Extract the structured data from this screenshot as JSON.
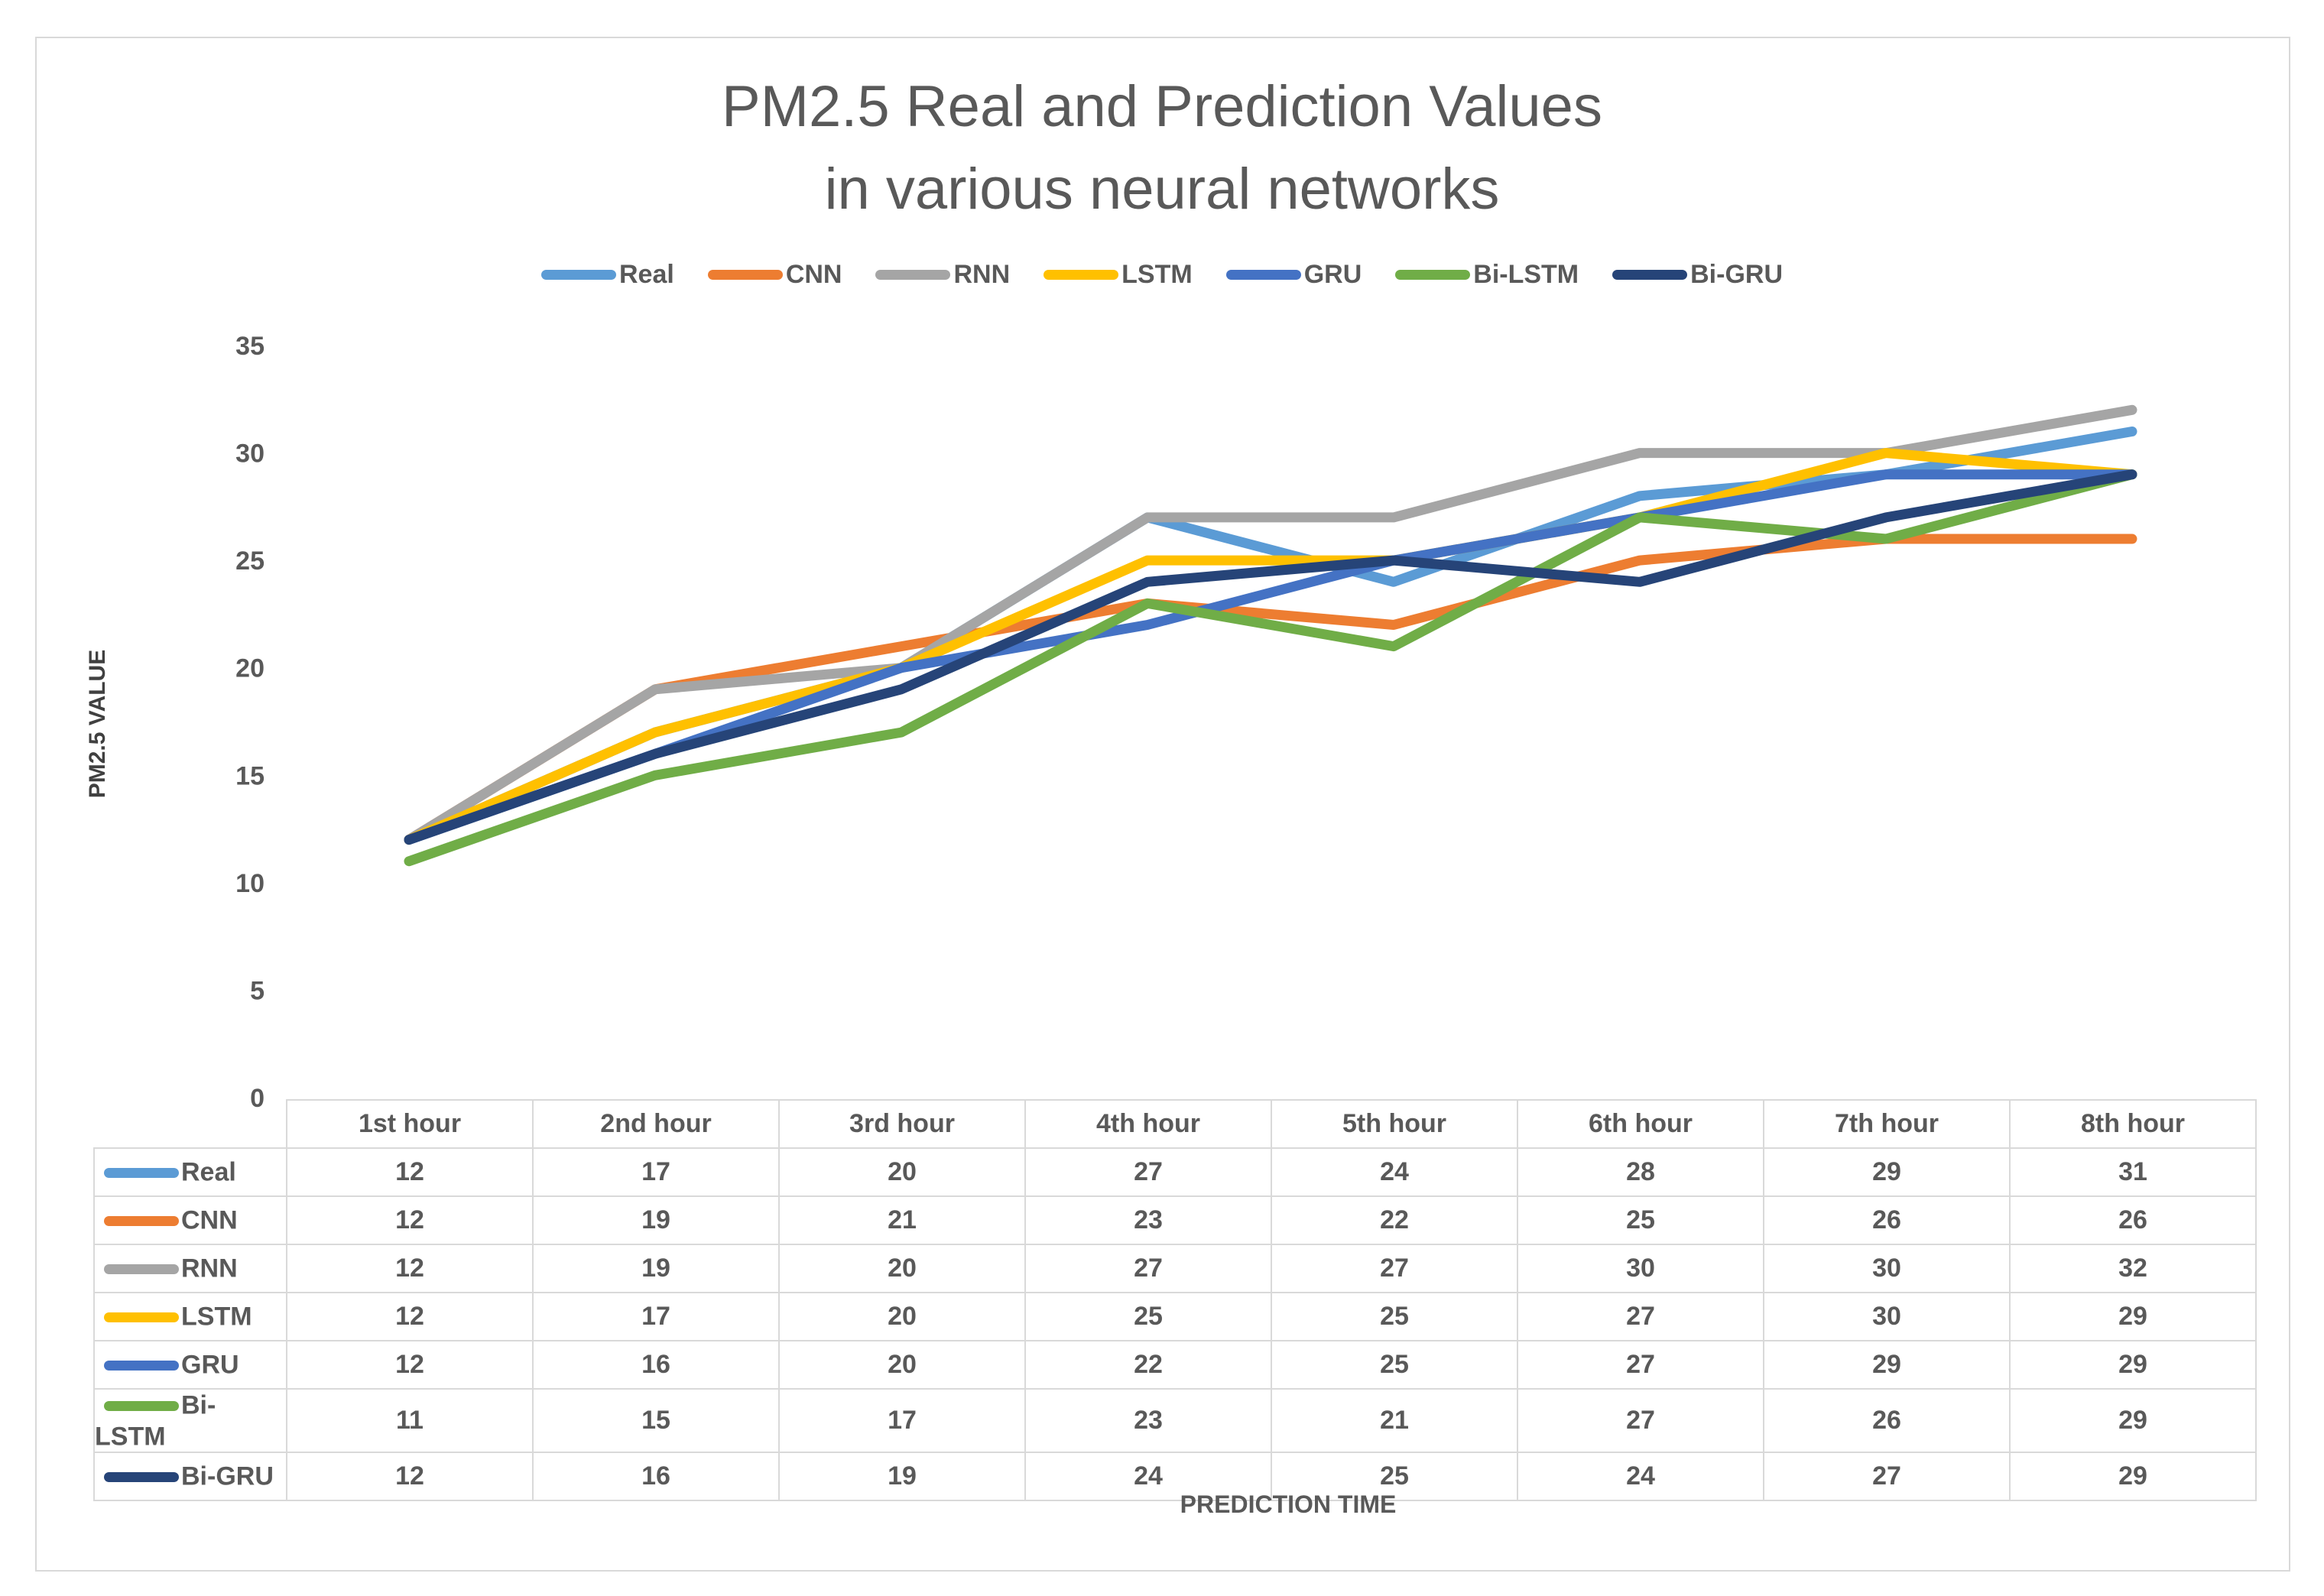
{
  "chart_data": {
    "type": "line",
    "title_lines": [
      "PM2.5 Real and Prediction Values",
      "in various neural networks"
    ],
    "xlabel": "PREDICTION TIME",
    "ylabel": "PM2.5 VALUE",
    "ylim": [
      0,
      35
    ],
    "yticks": [
      0,
      5,
      10,
      15,
      20,
      25,
      30,
      35
    ],
    "categories": [
      "1st hour",
      "2nd hour",
      "3rd hour",
      "4th hour",
      "5th hour",
      "6th hour",
      "7th hour",
      "8th hour"
    ],
    "legend_position": "top",
    "data_table": true,
    "series": [
      {
        "name": "Real",
        "color": "#5b9bd5",
        "values": [
          12,
          17,
          20,
          27,
          24,
          28,
          29,
          31
        ]
      },
      {
        "name": "CNN",
        "color": "#ed7d31",
        "values": [
          12,
          19,
          21,
          23,
          22,
          25,
          26,
          26
        ]
      },
      {
        "name": "RNN",
        "color": "#a5a5a5",
        "values": [
          12,
          19,
          20,
          27,
          27,
          30,
          30,
          32
        ]
      },
      {
        "name": "LSTM",
        "color": "#ffc000",
        "values": [
          12,
          17,
          20,
          25,
          25,
          27,
          30,
          29
        ]
      },
      {
        "name": "GRU",
        "color": "#4472c4",
        "values": [
          12,
          16,
          20,
          22,
          25,
          27,
          29,
          29
        ]
      },
      {
        "name": "Bi-LSTM",
        "color": "#70ad47",
        "values": [
          11,
          15,
          17,
          23,
          21,
          27,
          26,
          29
        ]
      },
      {
        "name": "Bi-GRU",
        "color": "#264478",
        "values": [
          12,
          16,
          19,
          24,
          25,
          24,
          27,
          29
        ]
      }
    ]
  }
}
